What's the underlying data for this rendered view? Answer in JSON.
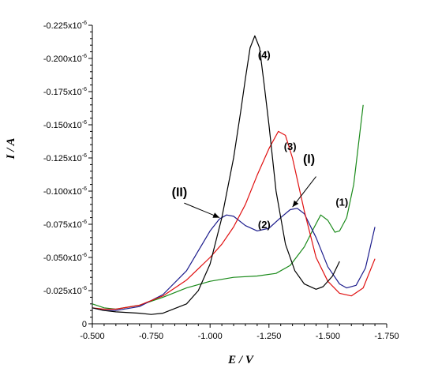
{
  "chart_data": {
    "type": "line",
    "title": "",
    "xlabel": "E / V",
    "ylabel": "I / A",
    "xlim": [
      -0.5,
      -1.75
    ],
    "ylim": [
      0,
      -0.225
    ],
    "y_unit_multiplier": "x10-6",
    "x_ticks": [
      "-0.500",
      "-0.750",
      "-1.000",
      "-1.250",
      "-1.500",
      "-1.750"
    ],
    "y_ticks": [
      "0",
      "-0.025x10",
      "-0.050x10",
      "-0.075x10",
      "-0.100x10",
      "-0.125x10",
      "-0.150x10",
      "-0.175x10",
      "-0.200x10",
      "-0.225x10"
    ],
    "y_tick_exp": "-6",
    "grid": false,
    "series": [
      {
        "name": "(1)",
        "color": "#1a8a1a",
        "x": [
          -0.5,
          -0.55,
          -0.6,
          -0.7,
          -0.8,
          -0.9,
          -1.0,
          -1.1,
          -1.2,
          -1.28,
          -1.34,
          -1.4,
          -1.44,
          -1.47,
          -1.5,
          -1.53,
          -1.55,
          -1.58,
          -1.61,
          -1.63,
          -1.65
        ],
        "y": [
          -0.015,
          -0.012,
          -0.011,
          -0.014,
          -0.02,
          -0.027,
          -0.032,
          -0.035,
          -0.036,
          -0.038,
          -0.044,
          -0.058,
          -0.072,
          -0.082,
          -0.078,
          -0.069,
          -0.07,
          -0.08,
          -0.105,
          -0.135,
          -0.165
        ]
      },
      {
        "name": "(2)",
        "color": "#1c1c8c",
        "x": [
          -0.5,
          -0.55,
          -0.6,
          -0.7,
          -0.8,
          -0.9,
          -0.95,
          -1.0,
          -1.04,
          -1.07,
          -1.1,
          -1.15,
          -1.2,
          -1.25,
          -1.3,
          -1.34,
          -1.37,
          -1.4,
          -1.45,
          -1.5,
          -1.55,
          -1.58,
          -1.62,
          -1.66,
          -1.7
        ],
        "y": [
          -0.012,
          -0.01,
          -0.01,
          -0.013,
          -0.022,
          -0.04,
          -0.055,
          -0.07,
          -0.079,
          -0.082,
          -0.081,
          -0.074,
          -0.07,
          -0.072,
          -0.08,
          -0.086,
          -0.087,
          -0.083,
          -0.065,
          -0.043,
          -0.03,
          -0.027,
          -0.029,
          -0.042,
          -0.073
        ]
      },
      {
        "name": "(3)",
        "color": "#e01010",
        "x": [
          -0.5,
          -0.55,
          -0.6,
          -0.7,
          -0.8,
          -0.9,
          -1.0,
          -1.05,
          -1.1,
          -1.15,
          -1.2,
          -1.25,
          -1.29,
          -1.32,
          -1.35,
          -1.4,
          -1.45,
          -1.5,
          -1.55,
          -1.6,
          -1.65,
          -1.7
        ],
        "y": [
          -0.012,
          -0.011,
          -0.011,
          -0.014,
          -0.021,
          -0.033,
          -0.05,
          -0.06,
          -0.073,
          -0.09,
          -0.112,
          -0.132,
          -0.145,
          -0.142,
          -0.125,
          -0.085,
          -0.05,
          -0.032,
          -0.023,
          -0.021,
          -0.027,
          -0.049
        ]
      },
      {
        "name": "(4)",
        "color": "#000000",
        "x": [
          -0.5,
          -0.55,
          -0.6,
          -0.7,
          -0.75,
          -0.8,
          -0.9,
          -0.95,
          -1.0,
          -1.05,
          -1.1,
          -1.13,
          -1.15,
          -1.17,
          -1.19,
          -1.21,
          -1.23,
          -1.25,
          -1.28,
          -1.32,
          -1.36,
          -1.4,
          -1.45,
          -1.48,
          -1.52,
          -1.55
        ],
        "y": [
          -0.012,
          -0.01,
          -0.009,
          -0.008,
          -0.007,
          -0.008,
          -0.015,
          -0.025,
          -0.045,
          -0.08,
          -0.125,
          -0.16,
          -0.185,
          -0.208,
          -0.217,
          -0.208,
          -0.18,
          -0.15,
          -0.1,
          -0.06,
          -0.04,
          -0.03,
          -0.026,
          -0.028,
          -0.036,
          -0.047
        ]
      }
    ],
    "annotations": [
      {
        "text": "(4)",
        "x": -1.23,
        "y": -0.2
      },
      {
        "text": "(3)",
        "x": -1.34,
        "y": -0.131
      },
      {
        "text": "(2)",
        "x": -1.23,
        "y": -0.072
      },
      {
        "text": "(1)",
        "x": -1.56,
        "y": -0.089
      },
      {
        "text": "(I)",
        "x": -1.42,
        "y": -0.121
      },
      {
        "text": "(II)",
        "x": -0.87,
        "y": -0.096
      }
    ],
    "arrows": [
      {
        "label": "(I)",
        "from_x": -1.45,
        "from_y": -0.111,
        "to_x": -1.35,
        "to_y": -0.088
      },
      {
        "label": "(II)",
        "from_x": -0.89,
        "from_y": -0.091,
        "to_x": -1.04,
        "to_y": -0.08
      }
    ]
  }
}
